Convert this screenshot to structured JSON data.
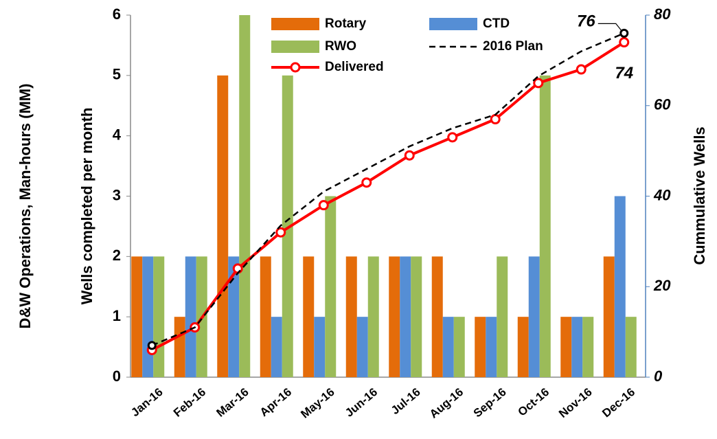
{
  "chart_data": {
    "type": "bar",
    "y_label": "Wells completed per month",
    "y2_label": "Cummulative Wells",
    "outer_label": "D&W Operations, Man-hours (MM)",
    "categories": [
      "Jan-16",
      "Feb-16",
      "Mar-16",
      "Apr-16",
      "May-16",
      "Jun-16",
      "Jul-16",
      "Aug-16",
      "Sep-16",
      "Oct-16",
      "Nov-16",
      "Dec-16"
    ],
    "series": [
      {
        "name": "Rotary",
        "type": "bar",
        "color": "#e46c0a",
        "values": [
          2,
          1,
          5,
          2,
          2,
          2,
          2,
          2,
          1,
          1,
          1,
          2
        ]
      },
      {
        "name": "CTD",
        "type": "bar",
        "color": "#558ed5",
        "values": [
          2,
          2,
          2,
          1,
          1,
          1,
          2,
          1,
          1,
          2,
          1,
          3
        ]
      },
      {
        "name": "RWO",
        "type": "bar",
        "color": "#9bbb59",
        "values": [
          2,
          2,
          6,
          5,
          3,
          2,
          2,
          1,
          2,
          5,
          1,
          1
        ]
      },
      {
        "name": "Delivered",
        "type": "line",
        "axis": "y2",
        "color": "#ff0000",
        "values": [
          6,
          11,
          24,
          32,
          38,
          43,
          49,
          53,
          57,
          65,
          68,
          74
        ],
        "value_labels": [
          null,
          null,
          null,
          null,
          null,
          null,
          null,
          null,
          null,
          null,
          null,
          "74"
        ]
      },
      {
        "name": "2016 Plan",
        "type": "line",
        "axis": "y2",
        "dashed": true,
        "color": "#000000",
        "values": [
          7,
          11,
          23,
          33.5,
          41,
          46,
          51,
          55,
          58,
          66.5,
          72,
          76
        ],
        "value_labels": [
          null,
          null,
          null,
          null,
          null,
          null,
          null,
          null,
          null,
          null,
          null,
          "76"
        ]
      }
    ],
    "ylim": [
      0,
      6
    ],
    "yticks": [
      0,
      1,
      2,
      3,
      4,
      5,
      6
    ],
    "y2lim": [
      0,
      80
    ],
    "y2ticks": [
      0,
      20,
      40,
      60,
      80
    ]
  }
}
